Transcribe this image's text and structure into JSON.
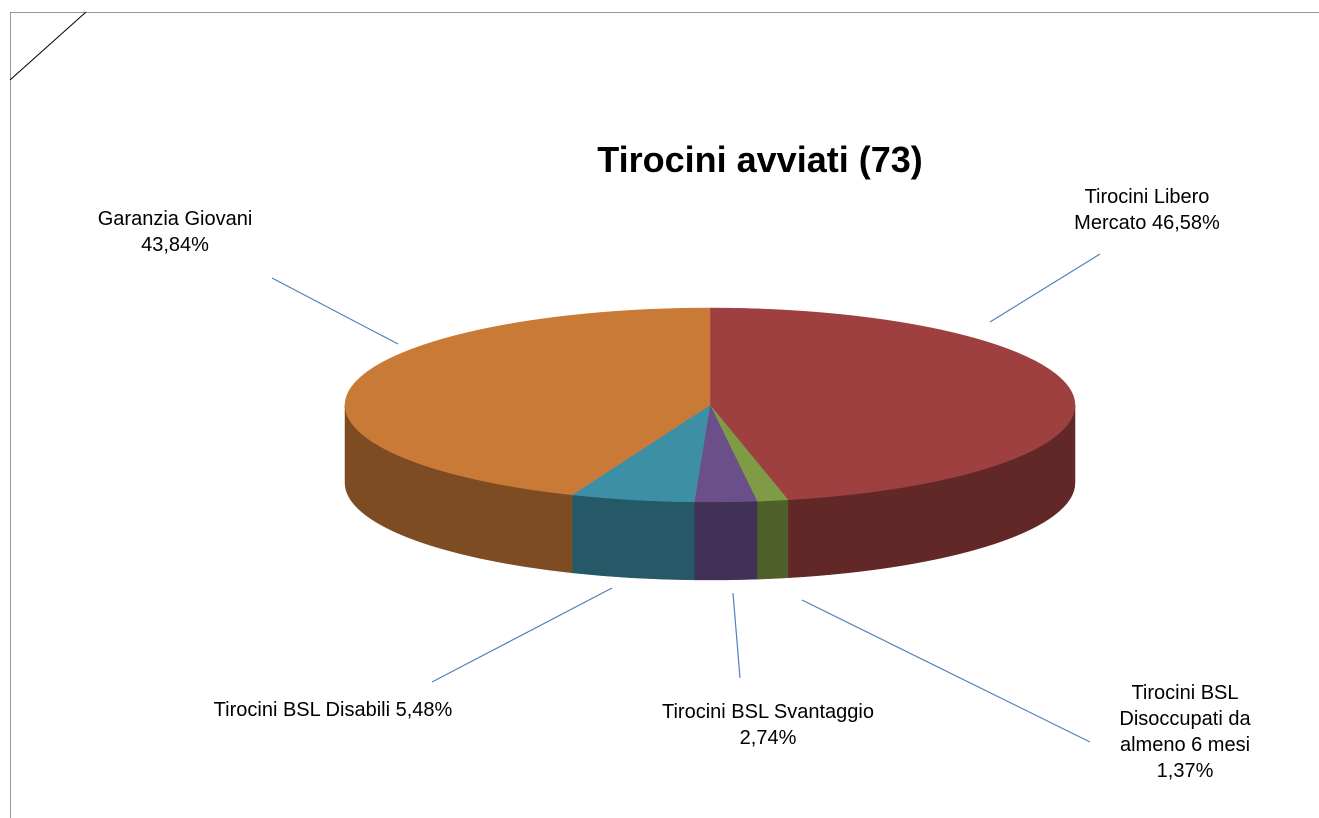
{
  "chart_data": {
    "type": "pie",
    "title": "Tirocini avviati (73)",
    "categories": [
      "Tirocini Libero Mercato",
      "Tirocini BSL Disoccupati da almeno 6 mesi",
      "Tirocini BSL Svantaggio",
      "Tirocini BSL Disabili",
      "Garanzia Giovani"
    ],
    "values": [
      46.58,
      1.37,
      2.74,
      5.48,
      43.84
    ],
    "value_labels": [
      "46,58%",
      "1,37%",
      "2,74%",
      "5,48%",
      "43,84%"
    ],
    "colors": [
      "#9e4040",
      "#7f9b45",
      "#6a4f8a",
      "#3d8fa6",
      "#c97a37"
    ]
  }
}
